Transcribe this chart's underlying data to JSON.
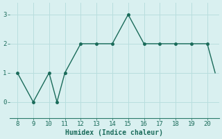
{
  "x": [
    8,
    9,
    10,
    10.5,
    11,
    12,
    13,
    14,
    15,
    16,
    17,
    18,
    19,
    20,
    20.5
  ],
  "y": [
    1,
    0,
    1,
    0,
    1,
    2,
    2,
    2,
    3,
    2,
    2,
    2,
    2,
    2,
    1
  ],
  "xlim": [
    7.5,
    20.75
  ],
  "ylim": [
    -0.55,
    3.4
  ],
  "xticks": [
    8,
    9,
    10,
    11,
    12,
    13,
    14,
    15,
    16,
    17,
    18,
    19,
    20
  ],
  "yticks": [
    0,
    1,
    2,
    3
  ],
  "xlabel": "Humidex (Indice chaleur)",
  "line_color": "#1a6b5a",
  "marker_color": "#1a6b5a",
  "bg_color": "#d9f0f0",
  "grid_color": "#b8dede",
  "axis_color": "#2a7a6a",
  "font_color": "#1a6b5a"
}
